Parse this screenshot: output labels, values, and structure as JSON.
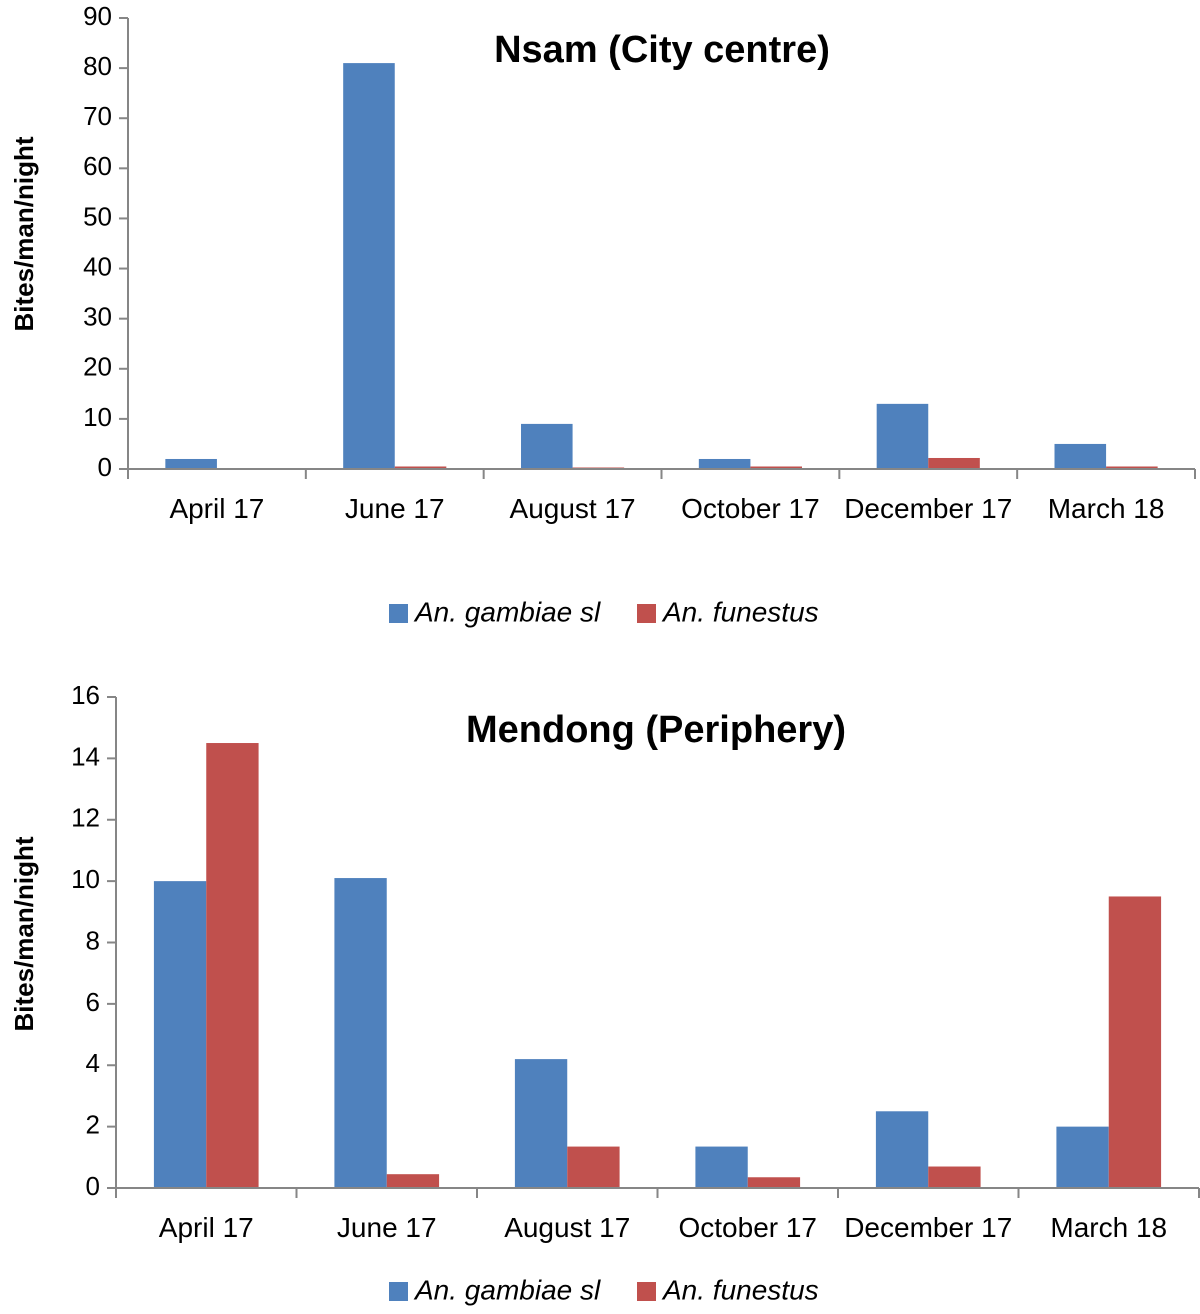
{
  "colors": {
    "gambiae": "#4f81bd",
    "funestus": "#c0504d",
    "axis": "#868686"
  },
  "chart_data": [
    {
      "type": "bar",
      "title": "Nsam (City centre)",
      "ylabel": "Bites/man/night",
      "xlabel": "",
      "ylim": [
        0,
        90
      ],
      "yticks": [
        0,
        10,
        20,
        30,
        40,
        50,
        60,
        70,
        80,
        90
      ],
      "categories": [
        "April 17",
        "June 17",
        "August 17",
        "October 17",
        "December 17",
        "March 18"
      ],
      "series": [
        {
          "name": "An. gambiae sl",
          "values": [
            2,
            81,
            9,
            2,
            13,
            5
          ]
        },
        {
          "name": "An. funestus",
          "values": [
            0,
            0.5,
            0.3,
            0.5,
            2.2,
            0.5
          ]
        }
      ],
      "legend": "bottom",
      "grid": false
    },
    {
      "type": "bar",
      "title": "Mendong (Periphery)",
      "ylabel": "Bites/man/night",
      "xlabel": "",
      "ylim": [
        0,
        16
      ],
      "yticks": [
        0,
        2,
        4,
        6,
        8,
        10,
        12,
        14,
        16
      ],
      "categories": [
        "April 17",
        "June 17",
        "August 17",
        "October 17",
        "December 17",
        "March 18"
      ],
      "series": [
        {
          "name": "An. gambiae sl",
          "values": [
            10,
            10.1,
            4.2,
            1.35,
            2.5,
            2
          ]
        },
        {
          "name": "An. funestus",
          "values": [
            14.5,
            0.45,
            1.35,
            0.35,
            0.7,
            9.5
          ]
        }
      ],
      "legend": "bottom",
      "grid": false
    }
  ]
}
